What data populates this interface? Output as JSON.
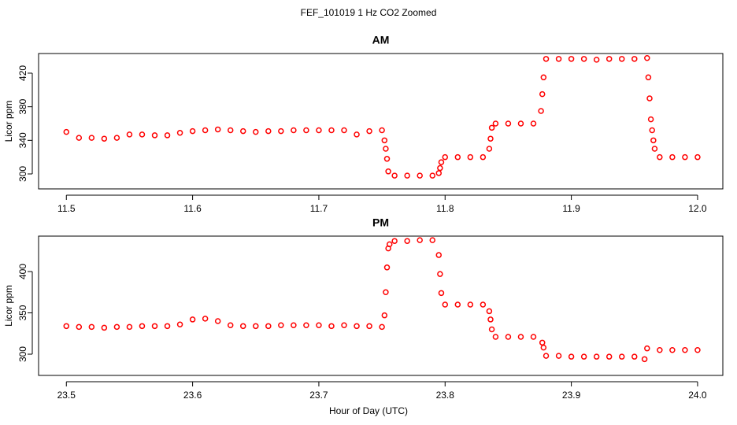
{
  "title": "FEF_101019  1 Hz CO2 Zoomed",
  "xlabel": "Hour of Day (UTC)",
  "chart_data": [
    {
      "type": "scatter",
      "title": "AM",
      "ylabel": "Licor ppm",
      "color": "#ff0000",
      "xlim": [
        11.478,
        12.02
      ],
      "xticks": [
        {
          "value": 11.5,
          "label": "11.5"
        },
        11.6,
        11.7,
        11.8,
        11.9,
        {
          "value": 12,
          "label": "12.0"
        }
      ],
      "ylim": [
        282.2,
        443.4
      ],
      "yticks": [
        300,
        340,
        380,
        420
      ],
      "x": [
        11.5,
        11.51,
        11.52,
        11.53,
        11.54,
        11.55,
        11.56,
        11.57,
        11.58,
        11.59,
        11.6,
        11.61,
        11.62,
        11.63,
        11.64,
        11.65,
        11.66,
        11.67,
        11.68,
        11.69,
        11.7,
        11.71,
        11.72,
        11.73,
        11.74,
        11.75,
        11.752,
        11.753,
        11.754,
        11.755,
        11.76,
        11.77,
        11.78,
        11.79,
        11.795,
        11.796,
        11.797,
        11.8,
        11.81,
        11.82,
        11.83,
        11.835,
        11.836,
        11.837,
        11.84,
        11.85,
        11.86,
        11.87,
        11.876,
        11.877,
        11.878,
        11.88,
        11.89,
        11.9,
        11.91,
        11.92,
        11.93,
        11.94,
        11.95,
        11.96,
        11.961,
        11.962,
        11.963,
        11.964,
        11.965,
        11.966,
        11.97,
        11.98,
        11.99,
        12.0
      ],
      "values": [
        350,
        343,
        343,
        342,
        343,
        347,
        347,
        346,
        346,
        349,
        351,
        352,
        353,
        352,
        351,
        350,
        351,
        351,
        352,
        352,
        352,
        352,
        352,
        347,
        351,
        352,
        340,
        330,
        318,
        303,
        298,
        298,
        298,
        298,
        301,
        307,
        314,
        320,
        320,
        320,
        320,
        330,
        342,
        355,
        360,
        360,
        360,
        360,
        375,
        395,
        415,
        437,
        437,
        437,
        437,
        436,
        437,
        437,
        437,
        438,
        415,
        390,
        365,
        352,
        340,
        330,
        320,
        320,
        320,
        320
      ]
    },
    {
      "type": "scatter",
      "title": "PM",
      "ylabel": "Licor ppm",
      "color": "#ff0000",
      "xlim": [
        23.478,
        24.02
      ],
      "xticks": [
        23.5,
        23.6,
        23.7,
        23.8,
        23.9,
        {
          "value": 24,
          "label": "24.0"
        }
      ],
      "ylim": [
        274.3,
        442.9
      ],
      "yticks": [
        300,
        350,
        400
      ],
      "x": [
        23.5,
        23.51,
        23.52,
        23.53,
        23.54,
        23.55,
        23.56,
        23.57,
        23.58,
        23.59,
        23.6,
        23.61,
        23.62,
        23.63,
        23.64,
        23.65,
        23.66,
        23.67,
        23.68,
        23.69,
        23.7,
        23.71,
        23.72,
        23.73,
        23.74,
        23.75,
        23.752,
        23.753,
        23.754,
        23.755,
        23.756,
        23.76,
        23.77,
        23.78,
        23.79,
        23.795,
        23.796,
        23.797,
        23.8,
        23.81,
        23.82,
        23.83,
        23.835,
        23.836,
        23.837,
        23.84,
        23.85,
        23.86,
        23.87,
        23.877,
        23.878,
        23.88,
        23.89,
        23.9,
        23.91,
        23.92,
        23.93,
        23.94,
        23.95,
        23.958,
        23.96,
        23.97,
        23.98,
        23.99,
        24.0
      ],
      "values": [
        334,
        333,
        333,
        332,
        333,
        333,
        334,
        334,
        334,
        336,
        342,
        343,
        340,
        335,
        334,
        334,
        334,
        335,
        335,
        335,
        335,
        334,
        335,
        334,
        334,
        333,
        347,
        375,
        405,
        428,
        433,
        437,
        437,
        438,
        438,
        420,
        397,
        374,
        360,
        360,
        360,
        360,
        352,
        342,
        330,
        321,
        321,
        321,
        321,
        314,
        308,
        298,
        298,
        297,
        297,
        297,
        297,
        297,
        297,
        294,
        307,
        305,
        305,
        305,
        305
      ]
    }
  ]
}
